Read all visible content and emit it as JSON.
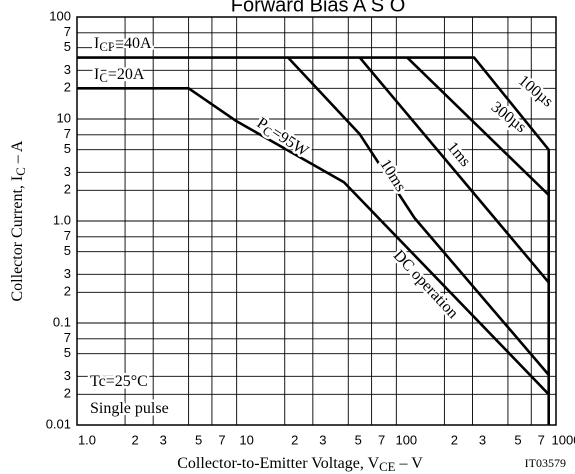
{
  "chart_data": {
    "type": "line",
    "title": "Forward Bias A S O",
    "x_label": [
      "Collector-to-Emitter Voltage, V",
      "CE",
      "  –  V"
    ],
    "y_label": [
      "Collector Current, I",
      "C",
      "  –  A"
    ],
    "figure_code": "IT03579",
    "log_x": true,
    "log_y": true,
    "grid": true,
    "xlim": [
      1,
      1000
    ],
    "ylim": [
      0.01,
      100
    ],
    "xticks": [
      {
        "value": 1,
        "label": "1.0"
      },
      {
        "value": 2,
        "label": "2"
      },
      {
        "value": 3,
        "label": "3"
      },
      {
        "value": 5,
        "label": "5"
      },
      {
        "value": 7,
        "label": "7"
      },
      10,
      {
        "value": 20,
        "label": "2"
      },
      {
        "value": 30,
        "label": "3"
      },
      {
        "value": 50,
        "label": "5"
      },
      {
        "value": 70,
        "label": "7"
      },
      100,
      {
        "value": 200,
        "label": "2"
      },
      {
        "value": 300,
        "label": "3"
      },
      {
        "value": 500,
        "label": "5"
      },
      {
        "value": 700,
        "label": "7"
      },
      1000
    ],
    "yticks": [
      0.01,
      {
        "value": 0.02,
        "label": "2"
      },
      {
        "value": 0.03,
        "label": "3"
      },
      {
        "value": 0.05,
        "label": "5"
      },
      {
        "value": 0.07,
        "label": "7"
      },
      0.1,
      {
        "value": 0.2,
        "label": "2"
      },
      {
        "value": 0.3,
        "label": "3"
      },
      {
        "value": 0.5,
        "label": "5"
      },
      {
        "value": 0.7,
        "label": "7"
      },
      {
        "value": 1,
        "label": "1.0"
      },
      2,
      3,
      5,
      7,
      10,
      {
        "value": 20,
        "label": "2"
      },
      {
        "value": 30,
        "label": "3"
      },
      {
        "value": 50,
        "label": "5"
      },
      {
        "value": 70,
        "label": "7"
      },
      100
    ],
    "color": "#000000",
    "series": [
      {
        "name": "100µs",
        "x": [
          1,
          307,
          900,
          900
        ],
        "values": [
          40,
          40,
          5,
          0.01
        ]
      },
      {
        "name": "300µs",
        "x": [
          117,
          900
        ],
        "values": [
          40,
          1.8
        ]
      },
      {
        "name": "1ms",
        "x": [
          59,
          900
        ],
        "values": [
          40,
          0.25
        ]
      },
      {
        "name": "10ms",
        "x": [
          21,
          59,
          130,
          900
        ],
        "values": [
          40,
          7.1,
          1.07,
          0.031
        ]
      },
      {
        "name": "DC operation",
        "x": [
          1,
          5,
          10,
          47,
          900
        ],
        "values": [
          20,
          20,
          9.5,
          2.4,
          0.02
        ]
      }
    ],
    "annotations": [
      {
        "parts": [
          "I",
          "CP",
          "=40A"
        ]
      },
      {
        "parts": [
          "I",
          "C",
          "=20A"
        ]
      },
      {
        "parts": [
          "P",
          "C",
          "=95W"
        ]
      },
      {
        "parts": [
          "Tc=25°C"
        ]
      },
      {
        "parts": [
          "Single pulse"
        ]
      }
    ]
  }
}
